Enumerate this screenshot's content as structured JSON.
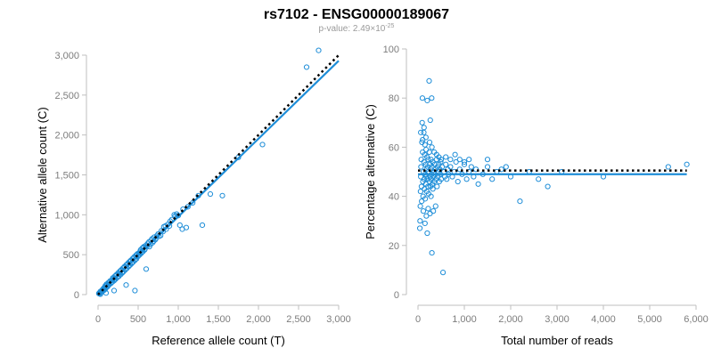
{
  "figure": {
    "title": "rs7102 - ENSG00000189067",
    "pvalue_prefix": "p-value: 2.49×10",
    "pvalue_exp": "-25"
  },
  "colors": {
    "points": "#1f8ed8",
    "fit": "#1f8ed8",
    "reference": "#000000",
    "axis": "#bfbfbf"
  },
  "chart_data": [
    {
      "type": "scatter",
      "xlabel": "Reference allele count (T)",
      "ylabel": "Alternative allele count (C)",
      "xlim": [
        0,
        3000
      ],
      "ylim": [
        0,
        3000
      ],
      "xticks": [
        0,
        500,
        1000,
        1500,
        2000,
        2500,
        3000
      ],
      "yticks": [
        0,
        500,
        1000,
        1500,
        2000,
        2500,
        3000
      ],
      "xtick_labels": [
        "0",
        "500",
        "1,000",
        "1,500",
        "2,000",
        "2,500",
        "3,000"
      ],
      "ytick_labels": [
        "0",
        "500",
        "1,000",
        "1,500",
        "2,000",
        "2,500",
        "3,000"
      ],
      "points": [
        [
          20,
          25
        ],
        [
          30,
          40
        ],
        [
          40,
          30
        ],
        [
          50,
          55
        ],
        [
          55,
          60
        ],
        [
          60,
          45
        ],
        [
          70,
          80
        ],
        [
          80,
          65
        ],
        [
          85,
          95
        ],
        [
          90,
          110
        ],
        [
          100,
          90
        ],
        [
          110,
          120
        ],
        [
          120,
          100
        ],
        [
          130,
          150
        ],
        [
          140,
          125
        ],
        [
          150,
          170
        ],
        [
          160,
          140
        ],
        [
          170,
          180
        ],
        [
          180,
          160
        ],
        [
          190,
          200
        ],
        [
          200,
          175
        ],
        [
          210,
          230
        ],
        [
          220,
          195
        ],
        [
          230,
          250
        ],
        [
          240,
          215
        ],
        [
          250,
          270
        ],
        [
          260,
          230
        ],
        [
          270,
          290
        ],
        [
          280,
          250
        ],
        [
          290,
          310
        ],
        [
          300,
          270
        ],
        [
          310,
          330
        ],
        [
          320,
          290
        ],
        [
          330,
          350
        ],
        [
          340,
          310
        ],
        [
          350,
          370
        ],
        [
          360,
          330
        ],
        [
          370,
          390
        ],
        [
          380,
          350
        ],
        [
          390,
          410
        ],
        [
          400,
          370
        ],
        [
          410,
          430
        ],
        [
          420,
          390
        ],
        [
          430,
          450
        ],
        [
          440,
          410
        ],
        [
          450,
          470
        ],
        [
          460,
          430
        ],
        [
          470,
          490
        ],
        [
          480,
          450
        ],
        [
          490,
          510
        ],
        [
          500,
          480
        ],
        [
          510,
          520
        ],
        [
          520,
          500
        ],
        [
          530,
          560
        ],
        [
          540,
          520
        ],
        [
          550,
          580
        ],
        [
          560,
          540
        ],
        [
          570,
          600
        ],
        [
          580,
          560
        ],
        [
          600,
          620
        ],
        [
          620,
          640
        ],
        [
          640,
          600
        ],
        [
          660,
          680
        ],
        [
          680,
          650
        ],
        [
          700,
          720
        ],
        [
          720,
          700
        ],
        [
          750,
          760
        ],
        [
          780,
          740
        ],
        [
          820,
          850
        ],
        [
          850,
          820
        ],
        [
          900,
          920
        ],
        [
          950,
          1000
        ],
        [
          980,
          1010
        ],
        [
          1020,
          870
        ],
        [
          1050,
          820
        ],
        [
          1100,
          840
        ],
        [
          1250,
          1240
        ],
        [
          1300,
          870
        ],
        [
          1400,
          1260
        ],
        [
          1550,
          1240
        ],
        [
          1750,
          1720
        ],
        [
          2050,
          1880
        ],
        [
          2600,
          2850
        ],
        [
          2750,
          3060
        ],
        [
          460,
          50
        ],
        [
          600,
          320
        ],
        [
          350,
          120
        ],
        [
          200,
          50
        ],
        [
          100,
          20
        ],
        [
          30,
          5
        ],
        [
          10,
          15
        ],
        [
          15,
          10
        ],
        [
          25,
          20
        ],
        [
          45,
          35
        ],
        [
          65,
          70
        ],
        [
          75,
          55
        ],
        [
          95,
          75
        ],
        [
          105,
          130
        ],
        [
          125,
          115
        ],
        [
          145,
          160
        ],
        [
          165,
          150
        ],
        [
          185,
          210
        ],
        [
          205,
          190
        ],
        [
          225,
          240
        ],
        [
          245,
          220
        ],
        [
          265,
          260
        ],
        [
          285,
          300
        ],
        [
          305,
          280
        ],
        [
          325,
          340
        ],
        [
          345,
          320
        ],
        [
          365,
          380
        ],
        [
          385,
          360
        ],
        [
          405,
          420
        ],
        [
          425,
          400
        ],
        [
          445,
          460
        ],
        [
          465,
          440
        ],
        [
          485,
          500
        ],
        [
          505,
          490
        ],
        [
          525,
          540
        ],
        [
          545,
          530
        ],
        [
          565,
          590
        ],
        [
          585,
          570
        ],
        [
          615,
          610
        ],
        [
          635,
          660
        ],
        [
          655,
          630
        ],
        [
          675,
          700
        ],
        [
          695,
          670
        ],
        [
          715,
          690
        ],
        [
          735,
          740
        ],
        [
          760,
          730
        ],
        [
          790,
          800
        ],
        [
          810,
          790
        ],
        [
          840,
          860
        ],
        [
          870,
          880
        ],
        [
          890,
          860
        ],
        [
          920,
          940
        ],
        [
          960,
          980
        ],
        [
          1000,
          990
        ],
        [
          1060,
          1070
        ],
        [
          1120,
          1100
        ],
        [
          1180,
          1150
        ]
      ],
      "fit_line": [
        [
          0,
          0
        ],
        [
          3000,
          2930
        ]
      ],
      "reference_line": [
        [
          0,
          0
        ],
        [
          3000,
          3000
        ]
      ]
    },
    {
      "type": "scatter",
      "xlabel": "Total number of reads",
      "ylabel": "Percentage alternative (C)",
      "xlim": [
        0,
        6000
      ],
      "ylim": [
        0,
        100
      ],
      "xticks": [
        0,
        1000,
        2000,
        3000,
        4000,
        5000,
        6000
      ],
      "yticks": [
        0,
        20,
        40,
        60,
        80,
        100
      ],
      "xtick_labels": [
        "0",
        "1,000",
        "2,000",
        "3,000",
        "4,000",
        "5,000",
        "6,000"
      ],
      "ytick_labels": [
        "0",
        "20",
        "40",
        "60",
        "80",
        "100"
      ],
      "points": [
        [
          40,
          27
        ],
        [
          45,
          30
        ],
        [
          50,
          36
        ],
        [
          55,
          42
        ],
        [
          60,
          48
        ],
        [
          65,
          52
        ],
        [
          70,
          55
        ],
        [
          75,
          44
        ],
        [
          80,
          38
        ],
        [
          85,
          62
        ],
        [
          90,
          70
        ],
        [
          95,
          80
        ],
        [
          100,
          58
        ],
        [
          105,
          46
        ],
        [
          110,
          40
        ],
        [
          115,
          34
        ],
        [
          120,
          50
        ],
        [
          125,
          66
        ],
        [
          130,
          54
        ],
        [
          135,
          47
        ],
        [
          140,
          43
        ],
        [
          145,
          57
        ],
        [
          150,
          61
        ],
        [
          155,
          39
        ],
        [
          160,
          49
        ],
        [
          165,
          53
        ],
        [
          170,
          45
        ],
        [
          175,
          59
        ],
        [
          180,
          48
        ],
        [
          185,
          51
        ],
        [
          190,
          42
        ],
        [
          195,
          56
        ],
        [
          200,
          79
        ],
        [
          205,
          47
        ],
        [
          210,
          52
        ],
        [
          215,
          44
        ],
        [
          220,
          55
        ],
        [
          225,
          50
        ],
        [
          230,
          41
        ],
        [
          240,
          87
        ],
        [
          245,
          58
        ],
        [
          250,
          46
        ],
        [
          255,
          53
        ],
        [
          260,
          48
        ],
        [
          265,
          71
        ],
        [
          270,
          44
        ],
        [
          275,
          51
        ],
        [
          280,
          55
        ],
        [
          285,
          47
        ],
        [
          290,
          49
        ],
        [
          295,
          80
        ],
        [
          300,
          52
        ],
        [
          310,
          45
        ],
        [
          320,
          54
        ],
        [
          330,
          48
        ],
        [
          340,
          50
        ],
        [
          350,
          46
        ],
        [
          360,
          53
        ],
        [
          370,
          49
        ],
        [
          380,
          51
        ],
        [
          390,
          47
        ],
        [
          400,
          55
        ],
        [
          410,
          44
        ],
        [
          420,
          52
        ],
        [
          430,
          48
        ],
        [
          440,
          50
        ],
        [
          450,
          53
        ],
        [
          460,
          46
        ],
        [
          470,
          51
        ],
        [
          480,
          49
        ],
        [
          490,
          54
        ],
        [
          500,
          47
        ],
        [
          520,
          52
        ],
        [
          540,
          9
        ],
        [
          560,
          50
        ],
        [
          580,
          48
        ],
        [
          600,
          53
        ],
        [
          620,
          47
        ],
        [
          640,
          51
        ],
        [
          660,
          49
        ],
        [
          700,
          52
        ],
        [
          740,
          48
        ],
        [
          780,
          50
        ],
        [
          820,
          54
        ],
        [
          860,
          46
        ],
        [
          900,
          51
        ],
        [
          950,
          49
        ],
        [
          1000,
          53
        ],
        [
          1050,
          47
        ],
        [
          1100,
          50
        ],
        [
          1150,
          52
        ],
        [
          1200,
          48
        ],
        [
          1250,
          51
        ],
        [
          1300,
          45
        ],
        [
          1400,
          49
        ],
        [
          1500,
          52
        ],
        [
          1600,
          47
        ],
        [
          1700,
          50
        ],
        [
          1800,
          51
        ],
        [
          1900,
          52
        ],
        [
          2000,
          48
        ],
        [
          2200,
          38
        ],
        [
          2400,
          50
        ],
        [
          2600,
          47
        ],
        [
          2800,
          44
        ],
        [
          3100,
          50
        ],
        [
          4000,
          48
        ],
        [
          5400,
          52
        ],
        [
          5800,
          53
        ],
        [
          300,
          17
        ],
        [
          260,
          33
        ],
        [
          330,
          34
        ],
        [
          380,
          36
        ],
        [
          200,
          25
        ],
        [
          150,
          29
        ],
        [
          180,
          32
        ],
        [
          220,
          35
        ],
        [
          280,
          40
        ],
        [
          320,
          43
        ],
        [
          100,
          63
        ],
        [
          60,
          66
        ],
        [
          130,
          68
        ],
        [
          170,
          64
        ],
        [
          250,
          62
        ],
        [
          300,
          60
        ],
        [
          350,
          58
        ],
        [
          400,
          57
        ],
        [
          450,
          56
        ],
        [
          500,
          55
        ],
        [
          600,
          56
        ],
        [
          700,
          55
        ],
        [
          800,
          57
        ],
        [
          900,
          55
        ],
        [
          1000,
          54
        ],
        [
          1100,
          55
        ],
        [
          1500,
          55
        ]
      ],
      "fit_line": [
        [
          0,
          49
        ],
        [
          5800,
          49
        ]
      ],
      "reference_line": [
        [
          0,
          50.5
        ],
        [
          5800,
          50.5
        ]
      ]
    }
  ]
}
